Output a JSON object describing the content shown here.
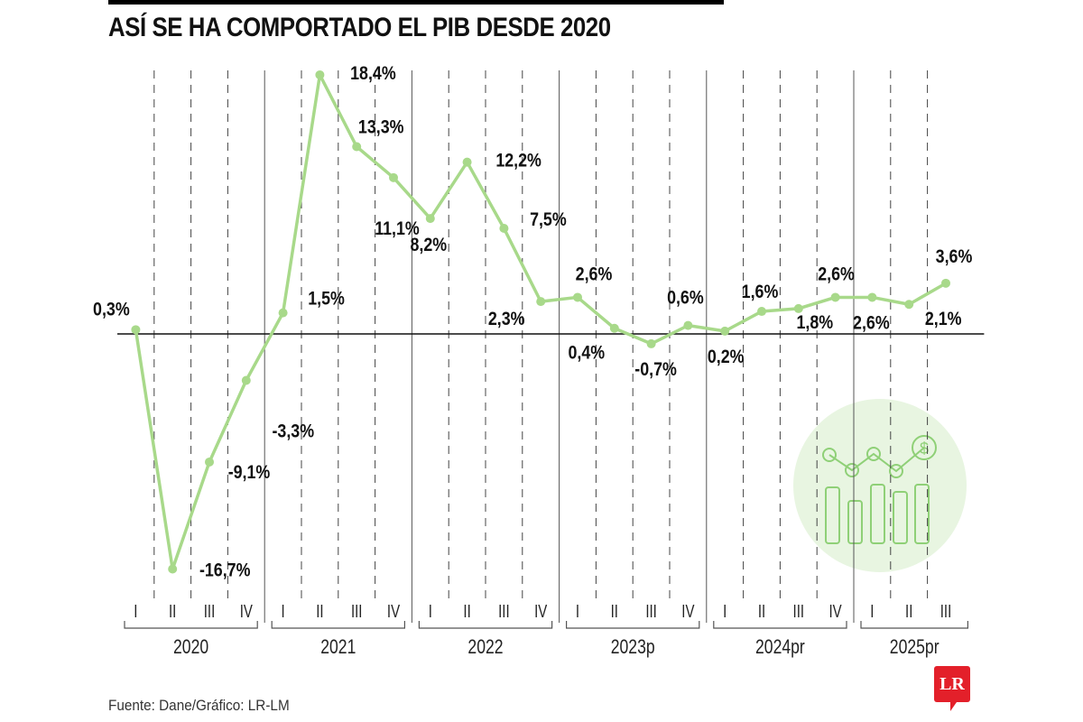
{
  "chart_data": {
    "type": "line",
    "title": "ASÍ SE HA COMPORTADO EL PIB DESDE 2020",
    "source": "Fuente: Dane/Gráfico: LR-LM",
    "logo": "LR",
    "years": [
      "2020",
      "2021",
      "2022",
      "2023p",
      "2024pr",
      "2025pr"
    ],
    "quarters": [
      "I",
      "II",
      "III",
      "IV"
    ],
    "x": [
      "2020-I",
      "2020-II",
      "2020-III",
      "2020-IV",
      "2021-I",
      "2021-II",
      "2021-III",
      "2021-IV",
      "2022-I",
      "2022-II",
      "2022-III",
      "2022-IV",
      "2023p-I",
      "2023p-II",
      "2023p-III",
      "2023p-IV",
      "2024pr-I",
      "2024pr-II",
      "2024pr-III",
      "2024pr-IV",
      "2025pr-I",
      "2025pr-II",
      "2025pr-III"
    ],
    "values": [
      0.3,
      -16.7,
      -9.1,
      -3.3,
      1.5,
      18.4,
      13.3,
      11.1,
      8.2,
      12.2,
      7.5,
      2.3,
      2.6,
      0.4,
      -0.7,
      0.6,
      0.2,
      1.6,
      1.8,
      2.6,
      2.6,
      2.1,
      3.6
    ],
    "labels": [
      "0,3%",
      "-16,7%",
      "-9,1%",
      "-3,3%",
      "1,5%",
      "18,4%",
      "13,3%",
      "11,1%",
      "8,2%",
      "12,2%",
      "7,5%",
      "2,3%",
      "2,6%",
      "0,4%",
      "-0,7%",
      "0,6%",
      "0,2%",
      "1,6%",
      "1,8%",
      "2,6%",
      "2,6%",
      "2,1%",
      "3,6%"
    ],
    "ylim": [
      -17,
      19
    ],
    "grid": "vertical dashed per quarter, solid per year",
    "colors": {
      "line": "#a8d98a",
      "icon_bg": "#e8f5e1",
      "icon_stroke": "#8fd077",
      "logo": "#e3202a"
    },
    "icon": "chart-dollar-icon"
  }
}
